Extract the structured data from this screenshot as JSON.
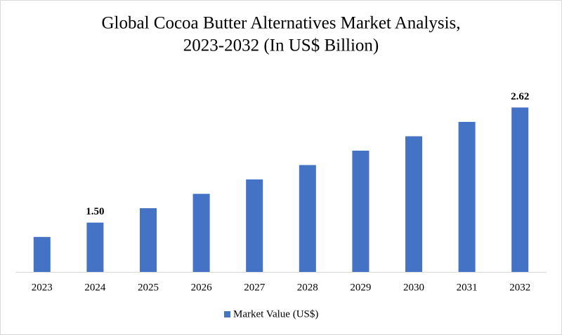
{
  "chart_data": {
    "type": "bar",
    "title": "Global Cocoa Butter Alternatives Market Analysis,",
    "subtitle": "2023-2032 (In US$ Billion)",
    "categories": [
      "2023",
      "2024",
      "2025",
      "2026",
      "2027",
      "2028",
      "2029",
      "2030",
      "2031",
      "2032"
    ],
    "series": [
      {
        "name": "Market Value (US$)",
        "color": "#4472c4",
        "values": [
          1.36,
          1.5,
          1.64,
          1.78,
          1.92,
          2.06,
          2.2,
          2.34,
          2.48,
          2.62
        ],
        "value_labels": [
          null,
          "1.50",
          null,
          null,
          null,
          null,
          null,
          null,
          null,
          "2.62"
        ]
      }
    ],
    "ylim": [
      1.02,
      2.8
    ],
    "legend": "bottom"
  }
}
